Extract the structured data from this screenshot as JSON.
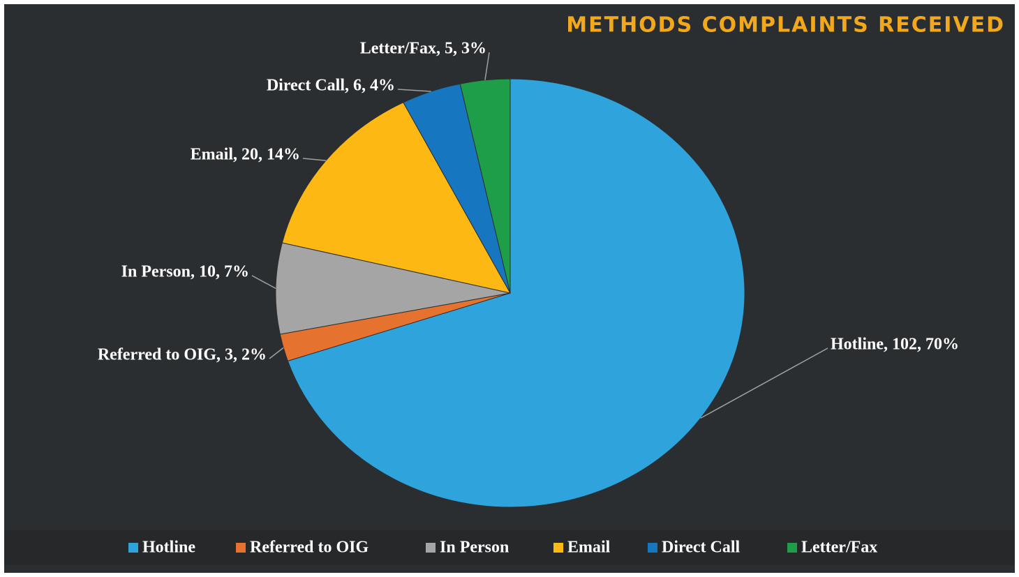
{
  "chart_data": {
    "type": "pie",
    "title": "METHODS COMPLAINTS RECEIVED",
    "categories": [
      "Hotline",
      "Referred to OIG",
      "In Person",
      "Email",
      "Direct Call",
      "Letter/Fax"
    ],
    "values": [
      102,
      3,
      10,
      20,
      6,
      5
    ],
    "value_labels": [
      "Hotline, 102, 70%",
      "Referred to OIG, 3, 2%",
      "In Person, 10, 7%",
      "Email, 20, 14%",
      "Direct Call, 6, 4%",
      "Letter/Fax, 5, 3%"
    ],
    "colors": [
      "#2ea3dc",
      "#e5732f",
      "#a5a5a5",
      "#fdb813",
      "#1677c0",
      "#1f9e4a"
    ],
    "legend": "bottom"
  }
}
